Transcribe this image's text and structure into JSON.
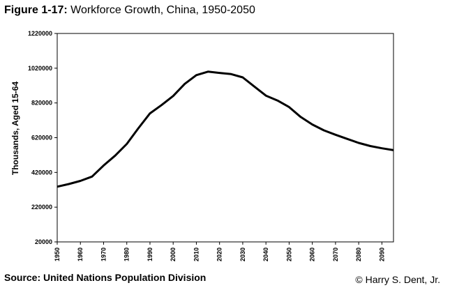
{
  "header": {
    "figure_label": "Figure 1-17:",
    "title": "Workforce Growth, China, 1950-2050"
  },
  "footer": {
    "source": "Source: United Nations Population Division",
    "credit": "© Harry S. Dent, Jr."
  },
  "chart_data": {
    "type": "line",
    "title": "Workforce Growth, China, 1950-2050",
    "xlabel": "",
    "ylabel": "Thousands, Aged 15-64",
    "xlim": [
      1950,
      2095
    ],
    "ylim": [
      20000,
      1220000
    ],
    "grid": false,
    "legend": "none",
    "line_color": "#000000",
    "yticks": [
      20000,
      220000,
      420000,
      620000,
      820000,
      1020000,
      1220000
    ],
    "ytick_labels": [
      "20000",
      "220000",
      "420000",
      "620000",
      "820000",
      "1020000",
      "1220000"
    ],
    "xticks": [
      1950,
      1960,
      1970,
      1980,
      1990,
      2000,
      2010,
      2020,
      2030,
      2040,
      2050,
      2060,
      2070,
      2080,
      2090
    ],
    "xtick_labels": [
      "1950",
      "1960",
      "1970",
      "1980",
      "1990",
      "2000",
      "2010",
      "2020",
      "2030",
      "2040",
      "2050",
      "2060",
      "2070",
      "2080",
      "2090"
    ],
    "series": [
      {
        "x": [
          1950,
          1955,
          1960,
          1965,
          1970,
          1975,
          1980,
          1985,
          1990,
          1995,
          2000,
          2005,
          2010,
          2015,
          2020,
          2025,
          2030,
          2035,
          2040,
          2045,
          2050,
          2055,
          2060,
          2065,
          2070,
          2075,
          2080,
          2085,
          2090,
          2095
        ],
        "y": [
          338000,
          353000,
          371000,
          396000,
          460000,
          517000,
          584000,
          674000,
          760000,
          808000,
          860000,
          930000,
          980000,
          1000000,
          993000,
          986000,
          967000,
          914000,
          862000,
          834000,
          796000,
          739000,
          696000,
          662000,
          637000,
          613000,
          590000,
          572000,
          559000,
          548000
        ]
      }
    ]
  }
}
